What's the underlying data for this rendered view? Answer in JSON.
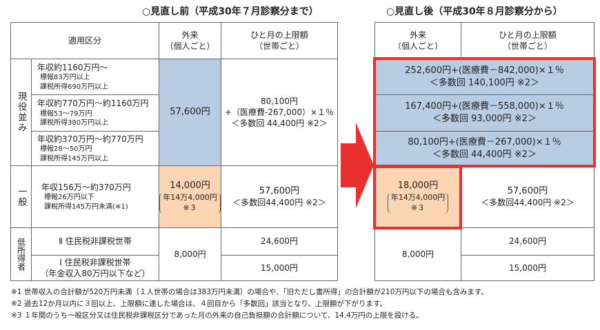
{
  "before": {
    "title": "○見直し前（平成30年７月診察分まで）",
    "header": {
      "category": "適用区分",
      "outpatient": [
        "外来",
        "（個人ごと）"
      ],
      "limit": [
        "ひと月の上限額",
        "（世帯ごと）"
      ]
    },
    "groups": [
      {
        "label": "現役並み",
        "rows": [
          {
            "income": "年収約1160万円～",
            "details": [
              "標報83万円以上",
              "課税所得690万円以上"
            ]
          },
          {
            "income": "年収約770万円～約1160万円",
            "details": [
              "標報53～79万円",
              "課税所得380万円以上"
            ]
          },
          {
            "income": "年収約370万円～約770万円",
            "details": [
              "標報28～50万円",
              "課税所得145万円以上"
            ]
          }
        ],
        "outpatient": "57,600円",
        "limit": [
          "80,100円",
          "+（医療費-267,000）×１％",
          "＜多数回 44,400円 ※2＞"
        ]
      },
      {
        "label": "一般",
        "income": "年収156万～約370万円",
        "details": [
          "標報26万円以下",
          "課税所得145万円未満(※1)"
        ],
        "outpatient": [
          "14,000円",
          "年14万4,000円",
          "※３"
        ],
        "limit": [
          "57,600円",
          "＜多数回44,400円 ※2＞"
        ]
      },
      {
        "label": "低所得者",
        "rows": [
          {
            "name": "Ⅱ 住民税非課税世帯",
            "limit": "24,600円"
          },
          {
            "name": "Ⅰ 住民税非課税世帯",
            "note": "（年金収入80万円以下など）",
            "limit": "15,000円"
          }
        ],
        "outpatient": "8,000円"
      }
    ]
  },
  "after": {
    "title": "○見直し後（平成30年８月診察分から）",
    "header": {
      "outpatient": [
        "外来",
        "（個人ごと）"
      ],
      "limit": [
        "ひと月の上限額",
        "（世帯ごと）"
      ]
    },
    "current_rows": [
      [
        "252,600円+(医療費－842,000)×１％",
        "＜多数回 140,100円 ※2＞"
      ],
      [
        "167,400円+(医療費－558,000)×１％",
        "＜多数回 93,000円 ※2＞"
      ],
      [
        "80,100円+(医療費－267,000)×１％",
        "＜多数回 44,400円 ※2＞"
      ]
    ],
    "general": {
      "outpatient": [
        "18,000円",
        "年14万4,000円",
        "※３"
      ],
      "limit": [
        "57,600円",
        "＜多数回44,400円 ※2＞"
      ]
    },
    "low_income": {
      "outpatient": "8,000円",
      "limits": [
        "24,600円",
        "15,000円"
      ]
    }
  },
  "footnotes": [
    "※1 世帯収入の合計額が520万円未満（１人世帯の場合は383万円未満）の場合や、「旧ただし書所得」の合計額が210万円以下の場合も含みます。",
    "※2 過去12か月以内に３回以上、上限額に達した場合は、４回目から「多数回」該当となり、上限額が下がります。",
    "※3 １年間のうち一般区分又は住民税非課税区分であった月の外来の自己負担額の合計額について、14.4万円の上限を設ける。"
  ]
}
